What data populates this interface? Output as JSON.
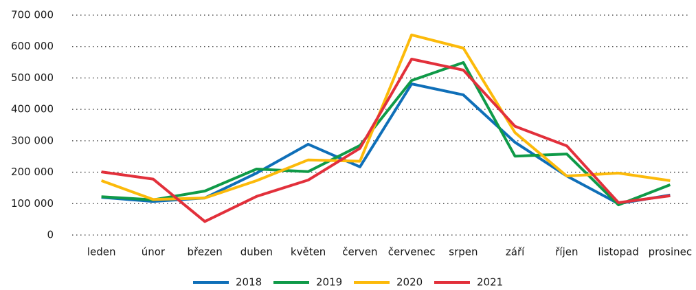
{
  "chart_data": {
    "type": "line",
    "categories": [
      "leden",
      "únor",
      "březen",
      "duben",
      "květen",
      "červen",
      "červenec",
      "srpen",
      "září",
      "říjen",
      "listopad",
      "prosinec"
    ],
    "series": [
      {
        "name": "2018",
        "color": "#0f6fb8",
        "values": [
          120000,
          107000,
          118000,
          197000,
          289000,
          217000,
          481000,
          446000,
          295000,
          188000,
          100000,
          127000
        ]
      },
      {
        "name": "2019",
        "color": "#0f9a48",
        "values": [
          122000,
          112000,
          140000,
          210000,
          202000,
          285000,
          492000,
          549000,
          251000,
          258000,
          96000,
          160000
        ]
      },
      {
        "name": "2020",
        "color": "#fcba0a",
        "values": [
          173000,
          113000,
          118000,
          173000,
          239000,
          235000,
          637000,
          595000,
          326000,
          188000,
          197000,
          173000
        ]
      },
      {
        "name": "2021",
        "color": "#e2303b",
        "values": [
          201000,
          178000,
          43000,
          123000,
          175000,
          276000,
          560000,
          525000,
          346000,
          284000,
          103000,
          125000
        ]
      }
    ],
    "ylim": [
      0,
      700000
    ],
    "yticks": [
      0,
      {
        "value": 100000,
        "label": "100 000"
      },
      {
        "value": 200000,
        "label": "200 000"
      },
      {
        "value": 300000,
        "label": "300 000"
      },
      {
        "value": 400000,
        "label": "400 000"
      },
      {
        "value": 500000,
        "label": "500 000"
      },
      {
        "value": 600000,
        "label": "600 000"
      },
      {
        "value": 700000,
        "label": "700 000"
      }
    ],
    "grid": true,
    "legend": "bottom"
  }
}
